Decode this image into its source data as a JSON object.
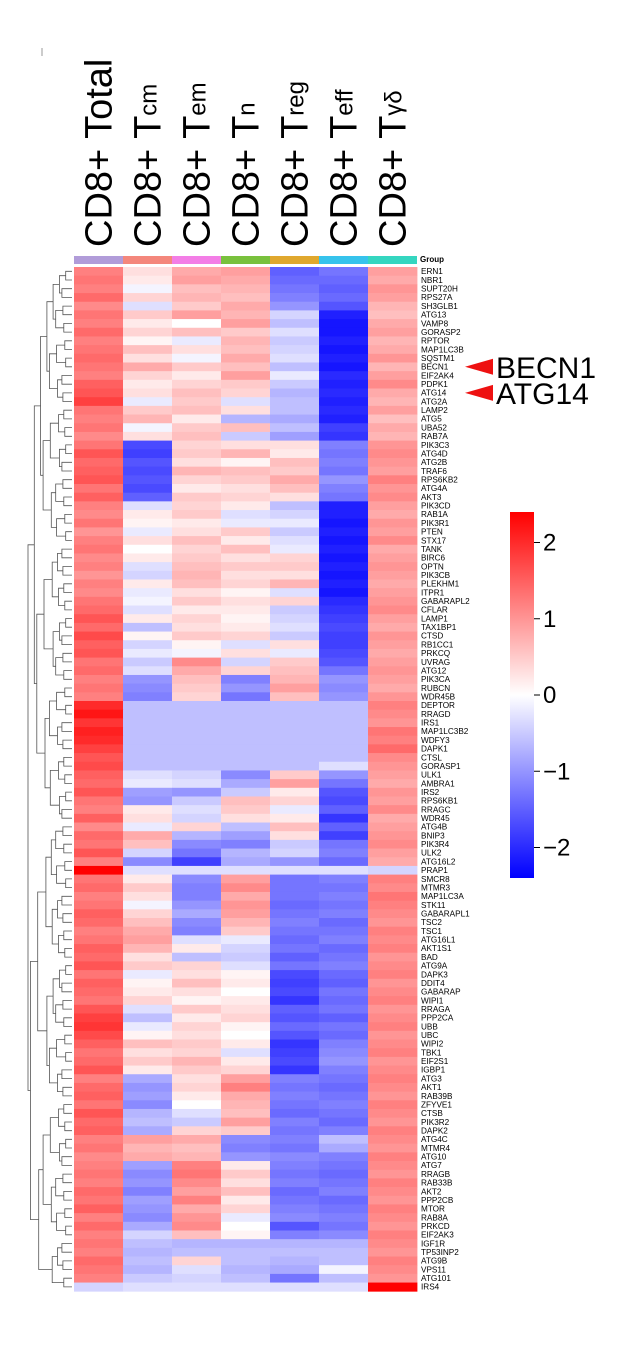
{
  "chart_data": {
    "type": "heatmap",
    "title": "",
    "group_label": "Group",
    "columns": [
      {
        "base": "CD8+ T",
        "sub": "",
        "full": "CD8+ Total"
      },
      {
        "base": "CD8+ T",
        "sub": "cm"
      },
      {
        "base": "CD8+ T",
        "sub": "em"
      },
      {
        "base": "CD8+ T",
        "sub": "n"
      },
      {
        "base": "CD8+ T",
        "sub": "reg"
      },
      {
        "base": "CD8+ T",
        "sub": "eff"
      },
      {
        "base": "CD8+ T",
        "sub": "γδ"
      }
    ],
    "genes": [
      "ERN1",
      "NBR1",
      "SUPT20H",
      "RPS27A",
      "SH3GLB1",
      "ATG13",
      "VAMP8",
      "GORASP2",
      "RPTOR",
      "MAP1LC3B",
      "SQSTM1",
      "BECN1",
      "EIF2AK4",
      "PDPK1",
      "ATG14",
      "ATG2A",
      "LAMP2",
      "ATG5",
      "UBA52",
      "RAB7A",
      "PIK3C3",
      "ATG4D",
      "ATG2B",
      "TRAF6",
      "RPS6KB2",
      "ATG4A",
      "AKT3",
      "PIK3CD",
      "RAB1A",
      "PIK3R1",
      "PTEN",
      "STX17",
      "TANK",
      "BIRC6",
      "OPTN",
      "PIK3CB",
      "PLEKHM1",
      "ITPR1",
      "GABARAPL2",
      "CFLAR",
      "LAMP1",
      "TAX1BP1",
      "CTSD",
      "RB1CC1",
      "PRKCQ",
      "UVRAG",
      "ATG12",
      "PIK3CA",
      "RUBCN",
      "WDR45B",
      "DEPTOR",
      "RRAGD",
      "IRS1",
      "MAP1LC3B2",
      "WDFY3",
      "DAPK1",
      "CTSL",
      "GORASP1",
      "ULK1",
      "AMBRA1",
      "IRS2",
      "RPS6KB1",
      "RRAGC",
      "WDR45",
      "ATG4B",
      "BNIP3",
      "PIK3R4",
      "ULK2",
      "ATG16L2",
      "PRAP1",
      "SMCR8",
      "MTMR3",
      "MAP1LC3A",
      "STK11",
      "GABARAPL1",
      "TSC2",
      "TSC1",
      "ATG16L1",
      "AKT1S1",
      "BAD",
      "ATG9A",
      "DAPK3",
      "DDIT4",
      "GABARAP",
      "WIPI1",
      "RRAGA",
      "PPP2CA",
      "UBB",
      "UBC",
      "WIPI2",
      "TBK1",
      "EIF2S1",
      "IGBP1",
      "ATG3",
      "AKT1",
      "RAB39B",
      "ZFYVE1",
      "CTSB",
      "PIK3R2",
      "DAPK2",
      "ATG4C",
      "MTMR4",
      "ATG10",
      "ATG7",
      "RRAGB",
      "RAB33B",
      "AKT2",
      "PPP2CB",
      "MTOR",
      "RAB8A",
      "PRKCD",
      "EIF2AK3",
      "IGF1R",
      "TP53INP2",
      "ATG9B",
      "VPS11",
      "ATG101",
      "IRS4"
    ],
    "values": [
      [
        1.2,
        0.3,
        0.8,
        0.9,
        -1.5,
        -1.3,
        0.9
      ],
      [
        1.3,
        0.2,
        0.9,
        0.8,
        -1.4,
        -1.4,
        0.8
      ],
      [
        1.2,
        -0.1,
        0.6,
        0.7,
        -1.3,
        -1.5,
        1.0
      ],
      [
        1.4,
        0.4,
        0.7,
        0.6,
        -1.2,
        -1.4,
        0.9
      ],
      [
        1.1,
        -0.3,
        0.5,
        0.8,
        -1.0,
        -1.6,
        0.7
      ],
      [
        1.3,
        0.5,
        0.9,
        0.7,
        -0.4,
        -2.1,
        0.6
      ],
      [
        1.2,
        0.2,
        0.0,
        0.9,
        -0.6,
        -2.2,
        0.8
      ],
      [
        1.4,
        0.4,
        0.6,
        0.5,
        -0.3,
        -2.2,
        0.9
      ],
      [
        1.2,
        0.1,
        -0.2,
        0.7,
        -0.5,
        -2.1,
        0.7
      ],
      [
        1.3,
        0.6,
        0.3,
        0.6,
        -0.4,
        -2.2,
        0.8
      ],
      [
        1.4,
        0.3,
        -0.1,
        0.8,
        -0.3,
        -2.1,
        1.0
      ],
      [
        1.3,
        0.8,
        0.5,
        0.6,
        -0.6,
        -2.2,
        0.7
      ],
      [
        1.2,
        0.4,
        0.2,
        0.9,
        -0.2,
        -2.0,
        0.9
      ],
      [
        1.5,
        0.2,
        0.4,
        0.5,
        -0.5,
        -2.1,
        1.1
      ],
      [
        1.6,
        0.3,
        0.6,
        0.4,
        -0.7,
        -2.0,
        0.8
      ],
      [
        1.8,
        -0.2,
        0.5,
        -0.3,
        -0.6,
        -2.1,
        0.7
      ],
      [
        1.3,
        0.5,
        0.6,
        0.3,
        -0.6,
        -2.0,
        0.9
      ],
      [
        1.2,
        0.7,
        0.2,
        -0.7,
        -0.8,
        -2.1,
        0.6
      ],
      [
        1.3,
        -0.1,
        0.5,
        0.6,
        -0.6,
        -1.8,
        0.8
      ],
      [
        1.1,
        0.3,
        0.6,
        -0.5,
        -0.9,
        -1.9,
        0.7
      ],
      [
        1.3,
        -1.7,
        0.4,
        0.3,
        0.3,
        -1.2,
        1.0
      ],
      [
        1.6,
        -1.8,
        0.5,
        0.7,
        0.2,
        -1.3,
        1.1
      ],
      [
        1.4,
        -1.6,
        0.3,
        0.1,
        0.6,
        -1.2,
        1.0
      ],
      [
        1.5,
        -1.7,
        0.7,
        0.6,
        0.5,
        -1.3,
        0.9
      ],
      [
        1.6,
        -1.6,
        0.4,
        0.5,
        0.8,
        -1.0,
        1.2
      ],
      [
        1.3,
        -1.7,
        0.2,
        0.3,
        0.6,
        -1.2,
        1.0
      ],
      [
        1.5,
        -1.5,
        0.5,
        0.4,
        0.3,
        -1.3,
        1.1
      ],
      [
        1.2,
        -0.3,
        0.4,
        0.2,
        -0.6,
        -2.1,
        0.9
      ],
      [
        1.1,
        0.2,
        0.5,
        -0.3,
        -0.4,
        -2.1,
        0.8
      ],
      [
        1.3,
        0.1,
        0.2,
        -0.2,
        -0.2,
        -2.2,
        1.0
      ],
      [
        1.0,
        -0.2,
        0.3,
        0.5,
        -0.5,
        -2.1,
        0.9
      ],
      [
        1.2,
        0.3,
        0.6,
        0.2,
        -0.3,
        -2.2,
        1.1
      ],
      [
        1.3,
        0.0,
        0.4,
        0.6,
        -0.2,
        -2.1,
        0.8
      ],
      [
        1.1,
        0.2,
        0.5,
        0.3,
        0.4,
        -2.2,
        0.9
      ],
      [
        1.2,
        -0.3,
        0.6,
        0.5,
        0.5,
        -2.1,
        1.0
      ],
      [
        1.0,
        -0.4,
        0.7,
        0.3,
        0.3,
        -2.2,
        0.9
      ],
      [
        1.2,
        0.2,
        0.6,
        0.4,
        0.7,
        -2.1,
        0.8
      ],
      [
        1.1,
        -0.2,
        0.3,
        0.1,
        -0.3,
        -2.2,
        0.9
      ],
      [
        1.3,
        -0.1,
        0.5,
        0.3,
        0.4,
        -2.0,
        1.0
      ],
      [
        1.4,
        -0.3,
        0.2,
        0.2,
        -0.5,
        -1.9,
        1.1
      ],
      [
        1.6,
        0.2,
        0.4,
        0.1,
        -0.4,
        -1.8,
        0.9
      ],
      [
        1.4,
        -0.6,
        0.3,
        0.2,
        -0.3,
        -1.7,
        0.8
      ],
      [
        1.7,
        0.1,
        0.5,
        0.4,
        -0.5,
        -1.8,
        1.0
      ],
      [
        1.5,
        -0.4,
        0.1,
        -0.3,
        0.3,
        -1.8,
        0.9
      ],
      [
        1.6,
        -0.2,
        -0.1,
        0.3,
        -0.2,
        -1.7,
        0.8
      ],
      [
        1.3,
        -0.5,
        1.1,
        -0.4,
        0.5,
        -1.6,
        0.9
      ],
      [
        1.4,
        -0.3,
        0.8,
        0.4,
        0.6,
        -1.3,
        1.0
      ],
      [
        1.2,
        -1.0,
        0.6,
        -1.2,
        0.7,
        -1.0,
        0.9
      ],
      [
        1.3,
        -1.1,
        0.5,
        -1.0,
        0.9,
        -1.1,
        0.8
      ],
      [
        1.2,
        -1.2,
        0.4,
        -1.3,
        0.6,
        -1.0,
        1.0
      ],
      [
        2.0,
        -0.6,
        -0.6,
        -0.6,
        -0.6,
        -0.6,
        1.2
      ],
      [
        2.2,
        -0.6,
        -0.6,
        -0.6,
        -0.6,
        -0.6,
        1.1
      ],
      [
        1.9,
        -0.6,
        -0.6,
        -0.6,
        -0.6,
        -0.6,
        1.0
      ],
      [
        2.1,
        -0.6,
        -0.6,
        -0.6,
        -0.6,
        -0.6,
        1.3
      ],
      [
        2.0,
        -0.6,
        -0.6,
        -0.6,
        -0.6,
        -0.6,
        1.2
      ],
      [
        1.8,
        -0.6,
        -0.6,
        -0.6,
        -0.6,
        -0.6,
        1.4
      ],
      [
        1.6,
        -0.6,
        -0.6,
        -0.6,
        -0.6,
        -0.6,
        1.1
      ],
      [
        1.7,
        -0.6,
        -0.6,
        -0.6,
        -0.6,
        -0.3,
        1.0
      ],
      [
        1.5,
        -0.3,
        -0.4,
        -1.1,
        0.5,
        -1.0,
        0.9
      ],
      [
        1.4,
        -0.2,
        -0.3,
        -0.8,
        0.9,
        -1.3,
        0.8
      ],
      [
        1.6,
        -0.9,
        -1.0,
        -0.5,
        0.2,
        -1.6,
        1.0
      ],
      [
        1.3,
        -1.0,
        -0.5,
        0.6,
        0.4,
        -1.7,
        0.9
      ],
      [
        1.2,
        0.2,
        -0.3,
        0.5,
        -0.2,
        -1.5,
        1.1
      ],
      [
        1.5,
        0.3,
        -0.4,
        0.3,
        0.2,
        -1.9,
        0.8
      ],
      [
        1.1,
        -0.2,
        0.4,
        -0.6,
        0.6,
        -1.5,
        0.9
      ],
      [
        1.4,
        0.8,
        -0.7,
        -0.9,
        0.3,
        -1.8,
        1.0
      ],
      [
        1.3,
        0.6,
        -1.1,
        -1.2,
        -0.5,
        -1.3,
        1.1
      ],
      [
        1.6,
        -0.4,
        -1.3,
        -0.7,
        -0.4,
        -1.2,
        0.9
      ],
      [
        1.2,
        -1.1,
        -1.8,
        -0.8,
        -1.0,
        -1.4,
        0.8
      ],
      [
        2.4,
        -0.3,
        -0.3,
        -0.3,
        -0.3,
        -0.3,
        -0.4
      ],
      [
        1.3,
        0.2,
        -1.1,
        0.9,
        -1.3,
        -1.2,
        1.2
      ],
      [
        1.4,
        0.5,
        -1.2,
        1.1,
        -1.3,
        -1.3,
        1.1
      ],
      [
        1.2,
        0.3,
        -1.2,
        0.8,
        -1.3,
        -1.2,
        1.3
      ],
      [
        1.3,
        -0.1,
        -1.0,
        1.0,
        -1.4,
        -1.3,
        1.2
      ],
      [
        1.5,
        0.4,
        -0.8,
        0.9,
        -1.3,
        -1.2,
        1.1
      ],
      [
        1.4,
        0.6,
        -1.1,
        0.7,
        -1.2,
        -1.4,
        1.0
      ],
      [
        1.2,
        0.8,
        -1.2,
        0.5,
        -1.3,
        -1.3,
        1.2
      ],
      [
        1.3,
        0.9,
        -0.3,
        -0.2,
        -1.4,
        -1.2,
        1.1
      ],
      [
        1.5,
        0.7,
        0.2,
        -0.4,
        -1.3,
        -1.4,
        1.2
      ],
      [
        1.4,
        0.3,
        -0.6,
        -0.5,
        -1.5,
        -1.3,
        1.0
      ],
      [
        1.6,
        0.5,
        0.4,
        -0.3,
        -1.3,
        -1.2,
        1.1
      ],
      [
        1.3,
        -0.2,
        0.3,
        0.1,
        -1.7,
        -1.4,
        1.2
      ],
      [
        1.5,
        0.1,
        0.6,
        0.2,
        -1.8,
        -1.5,
        1.0
      ],
      [
        1.4,
        0.2,
        0.3,
        0.0,
        -1.7,
        -1.3,
        1.1
      ],
      [
        1.3,
        0.4,
        0.1,
        0.2,
        -1.9,
        -1.4,
        1.2
      ],
      [
        1.6,
        -0.3,
        0.5,
        0.3,
        -1.5,
        -1.3,
        1.0
      ],
      [
        1.8,
        -0.6,
        0.2,
        0.4,
        -1.6,
        -1.5,
        1.1
      ],
      [
        1.9,
        -0.2,
        0.4,
        0.1,
        -1.4,
        -1.3,
        1.2
      ],
      [
        1.7,
        0.1,
        0.3,
        0.0,
        -1.6,
        -1.4,
        1.0
      ],
      [
        1.5,
        0.6,
        0.5,
        0.2,
        -1.9,
        -1.2,
        1.1
      ],
      [
        1.3,
        0.3,
        0.4,
        -0.3,
        -1.8,
        -1.1,
        1.2
      ],
      [
        1.4,
        0.5,
        0.7,
        0.2,
        -1.7,
        -1.0,
        1.0
      ],
      [
        1.6,
        0.2,
        0.5,
        0.4,
        -1.9,
        -1.2,
        1.1
      ],
      [
        1.2,
        -0.8,
        0.3,
        0.9,
        -1.2,
        -1.3,
        1.2
      ],
      [
        1.4,
        -1.0,
        0.4,
        1.2,
        -1.3,
        -1.4,
        1.1
      ],
      [
        1.5,
        -0.9,
        0.2,
        0.8,
        -1.2,
        -1.3,
        1.0
      ],
      [
        1.3,
        -1.1,
        0.0,
        0.7,
        -1.3,
        -1.2,
        1.2
      ],
      [
        1.6,
        -0.7,
        -0.3,
        0.6,
        -1.4,
        -1.3,
        1.1
      ],
      [
        1.4,
        -0.6,
        -0.5,
        0.9,
        -1.2,
        -1.4,
        1.0
      ],
      [
        1.5,
        -0.8,
        0.4,
        0.5,
        -1.3,
        -1.2,
        1.2
      ],
      [
        1.2,
        0.9,
        0.8,
        -1.1,
        -1.2,
        -0.6,
        1.1
      ],
      [
        1.3,
        0.7,
        0.6,
        -1.2,
        -1.3,
        -0.8,
        1.0
      ],
      [
        1.1,
        0.8,
        0.7,
        -1.0,
        -1.1,
        -1.2,
        1.2
      ],
      [
        1.2,
        -0.9,
        1.2,
        0.2,
        -1.2,
        -1.3,
        1.1
      ],
      [
        1.3,
        -1.1,
        1.3,
        0.5,
        -1.3,
        -1.4,
        1.0
      ],
      [
        1.2,
        -1.0,
        1.1,
        0.3,
        -1.2,
        -1.3,
        1.2
      ],
      [
        1.4,
        -1.2,
        0.9,
        0.6,
        -1.4,
        -1.2,
        1.1
      ],
      [
        1.3,
        -0.9,
        1.2,
        0.2,
        -1.3,
        -1.4,
        1.0
      ],
      [
        1.5,
        -1.0,
        0.8,
        0.4,
        -1.2,
        -1.3,
        1.2
      ],
      [
        1.2,
        -1.1,
        1.0,
        -0.2,
        -1.1,
        -1.2,
        1.1
      ],
      [
        1.4,
        -0.8,
        1.1,
        0.0,
        -1.6,
        -1.3,
        1.0
      ],
      [
        1.2,
        -0.4,
        0.6,
        0.1,
        -1.2,
        -1.1,
        1.2
      ],
      [
        1.3,
        -0.6,
        -0.7,
        -0.7,
        -0.7,
        -0.7,
        1.1
      ],
      [
        1.2,
        -0.7,
        -0.6,
        -0.6,
        -0.6,
        -0.6,
        1.0
      ],
      [
        1.4,
        -0.6,
        0.4,
        -0.6,
        -0.7,
        -0.6,
        1.2
      ],
      [
        1.3,
        -0.7,
        -0.3,
        -0.7,
        -0.8,
        -0.1,
        1.1
      ],
      [
        1.2,
        -0.5,
        -0.4,
        -0.6,
        -1.3,
        -0.6,
        1.0
      ],
      [
        -0.4,
        -0.3,
        -0.3,
        -0.3,
        -0.3,
        -0.3,
        2.4
      ]
    ],
    "annotations": [
      {
        "label": "BECN1",
        "gene": "BECN1"
      },
      {
        "label": "ATG14",
        "gene": "ATG14"
      }
    ],
    "group_colors": [
      "#b19cd9",
      "#f4877c",
      "#f37ee6",
      "#79c13d",
      "#e0a82e",
      "#36c3ec",
      "#35d6c0"
    ],
    "colorbar": {
      "min": -2.4,
      "max": 2.4,
      "ticks": [
        2,
        1,
        0,
        -1,
        -2
      ],
      "tick_labels": [
        "2",
        "1",
        "0",
        "−1",
        "−2"
      ]
    },
    "colors": {
      "low": "#0000ff",
      "mid": "#ffffff",
      "high": "#ff0000",
      "annotation_arrow": "#ee1111"
    }
  }
}
